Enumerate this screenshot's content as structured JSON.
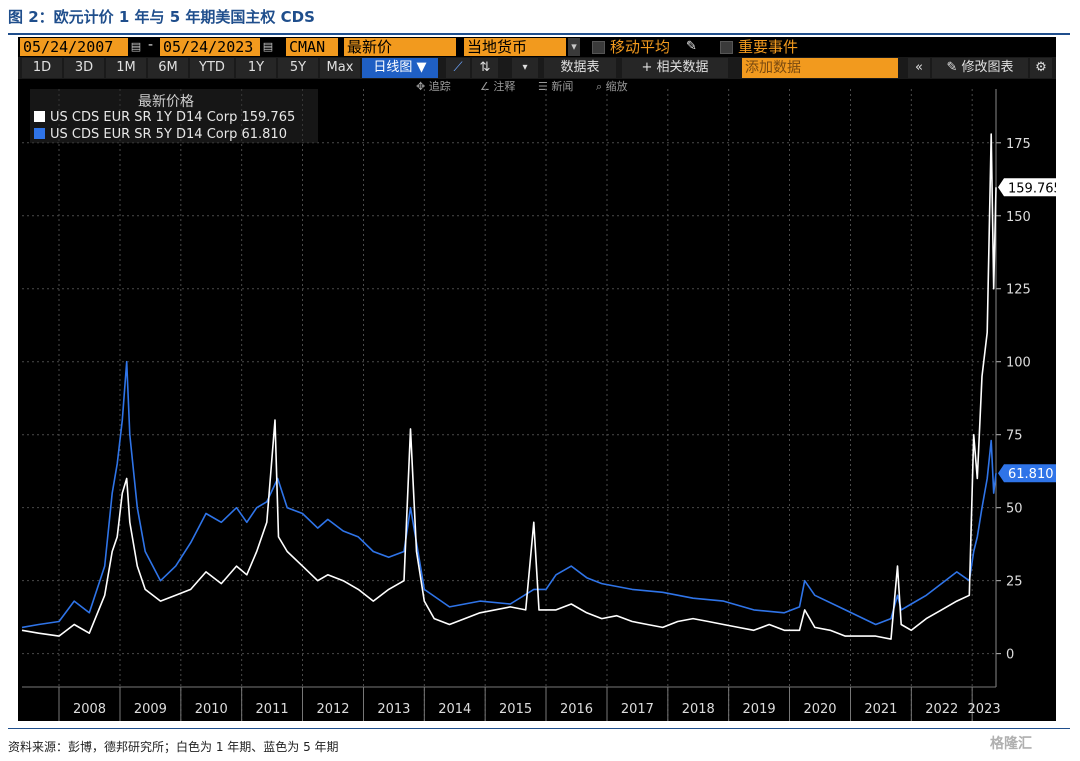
{
  "figure": {
    "title": "图 2：欧元计价 1 年与 5 年期美国主权 CDS",
    "source": "资料来源：彭博，德邦研究所；白色为 1 年期、蓝色为 5 年期",
    "watermark": "格隆汇"
  },
  "toolbar": {
    "start_date": "05/24/2007",
    "end_date": "05/24/2023",
    "dash": "-",
    "calendar_icon": "calendar-icon",
    "mode": "CMAN",
    "field": "最新价",
    "currency": "当地货币",
    "moving_avg_label": "移动平均",
    "events_label": "重要事件",
    "periods": [
      "1D",
      "3D",
      "1M",
      "6M",
      "YTD",
      "1Y",
      "5Y",
      "Max"
    ],
    "chart_type_label": "日线图 ▼",
    "data_table_label": "数据表",
    "related_data_label": "+ 相关数据",
    "add_data_placeholder": "添加数据",
    "edit_chart_label": "修改图表",
    "tools": [
      "追踪",
      "注释",
      "新闻",
      "缩放"
    ]
  },
  "colors": {
    "orange": "#f29a1e",
    "series_1y": "#ffffff",
    "series_5y": "#2f74e8",
    "background": "#000000",
    "title_blue": "#1f4e8c"
  },
  "chart_data": {
    "type": "line",
    "title": "",
    "legend_title": "最新价格",
    "legend_position": "top-left",
    "grid": true,
    "ylim": [
      -8,
      190
    ],
    "yticks": [
      0,
      25,
      50,
      75,
      100,
      125,
      150,
      175
    ],
    "xlim": [
      "2007-05-24",
      "2023-05-24"
    ],
    "xticks": [
      "2008",
      "2009",
      "2010",
      "2011",
      "2012",
      "2013",
      "2014",
      "2015",
      "2016",
      "2017",
      "2018",
      "2019",
      "2020",
      "2021",
      "2022",
      "2023"
    ],
    "series": [
      {
        "name": "US CDS EUR SR 1Y D14 Corp",
        "last": "159.765",
        "color": "#ffffff",
        "points": [
          [
            "2007-05-24",
            8
          ],
          [
            "2007-09-01",
            7
          ],
          [
            "2008-01-01",
            6
          ],
          [
            "2008-04-01",
            10
          ],
          [
            "2008-07-01",
            7
          ],
          [
            "2008-10-01",
            20
          ],
          [
            "2008-11-15",
            35
          ],
          [
            "2008-12-15",
            40
          ],
          [
            "2009-01-15",
            55
          ],
          [
            "2009-02-10",
            60
          ],
          [
            "2009-03-01",
            45
          ],
          [
            "2009-04-15",
            30
          ],
          [
            "2009-06-01",
            22
          ],
          [
            "2009-09-01",
            18
          ],
          [
            "2009-12-01",
            20
          ],
          [
            "2010-03-01",
            22
          ],
          [
            "2010-06-01",
            28
          ],
          [
            "2010-09-01",
            24
          ],
          [
            "2010-12-01",
            30
          ],
          [
            "2011-02-01",
            27
          ],
          [
            "2011-04-01",
            35
          ],
          [
            "2011-06-01",
            45
          ],
          [
            "2011-07-20",
            80
          ],
          [
            "2011-08-10",
            40
          ],
          [
            "2011-10-01",
            35
          ],
          [
            "2012-01-01",
            30
          ],
          [
            "2012-04-01",
            25
          ],
          [
            "2012-06-01",
            27
          ],
          [
            "2012-09-01",
            25
          ],
          [
            "2012-12-01",
            22
          ],
          [
            "2013-03-01",
            18
          ],
          [
            "2013-06-01",
            22
          ],
          [
            "2013-09-01",
            25
          ],
          [
            "2013-10-10",
            77
          ],
          [
            "2013-11-15",
            35
          ],
          [
            "2014-01-01",
            18
          ],
          [
            "2014-03-01",
            12
          ],
          [
            "2014-06-01",
            10
          ],
          [
            "2014-09-01",
            12
          ],
          [
            "2014-12-01",
            14
          ],
          [
            "2015-06-01",
            16
          ],
          [
            "2015-09-01",
            15
          ],
          [
            "2015-10-20",
            45
          ],
          [
            "2015-11-20",
            15
          ],
          [
            "2016-03-01",
            15
          ],
          [
            "2016-06-01",
            17
          ],
          [
            "2016-09-01",
            14
          ],
          [
            "2016-12-01",
            12
          ],
          [
            "2017-03-01",
            13
          ],
          [
            "2017-06-01",
            11
          ],
          [
            "2017-09-01",
            10
          ],
          [
            "2017-12-01",
            9
          ],
          [
            "2018-03-01",
            11
          ],
          [
            "2018-06-01",
            12
          ],
          [
            "2018-09-01",
            11
          ],
          [
            "2018-12-01",
            10
          ],
          [
            "2019-03-01",
            9
          ],
          [
            "2019-06-01",
            8
          ],
          [
            "2019-09-01",
            10
          ],
          [
            "2019-12-01",
            8
          ],
          [
            "2020-03-01",
            8
          ],
          [
            "2020-04-01",
            15
          ],
          [
            "2020-06-01",
            9
          ],
          [
            "2020-09-01",
            8
          ],
          [
            "2020-12-01",
            6
          ],
          [
            "2021-03-01",
            6
          ],
          [
            "2021-06-01",
            6
          ],
          [
            "2021-09-01",
            5
          ],
          [
            "2021-10-10",
            30
          ],
          [
            "2021-11-01",
            10
          ],
          [
            "2022-01-01",
            8
          ],
          [
            "2022-04-01",
            12
          ],
          [
            "2022-07-01",
            15
          ],
          [
            "2022-10-01",
            18
          ],
          [
            "2022-12-15",
            20
          ],
          [
            "2023-01-10",
            75
          ],
          [
            "2023-02-01",
            60
          ],
          [
            "2023-03-01",
            95
          ],
          [
            "2023-04-01",
            110
          ],
          [
            "2023-04-25",
            178
          ],
          [
            "2023-05-10",
            125
          ],
          [
            "2023-05-24",
            159.765
          ]
        ]
      },
      {
        "name": "US CDS EUR SR 5Y D14 Corp",
        "last": "61.810",
        "color": "#2f74e8",
        "points": [
          [
            "2007-05-24",
            9
          ],
          [
            "2007-09-01",
            10
          ],
          [
            "2008-01-01",
            11
          ],
          [
            "2008-04-01",
            18
          ],
          [
            "2008-07-01",
            14
          ],
          [
            "2008-10-01",
            30
          ],
          [
            "2008-11-15",
            55
          ],
          [
            "2008-12-15",
            65
          ],
          [
            "2009-01-15",
            80
          ],
          [
            "2009-02-10",
            100
          ],
          [
            "2009-03-01",
            75
          ],
          [
            "2009-04-15",
            50
          ],
          [
            "2009-06-01",
            35
          ],
          [
            "2009-09-01",
            25
          ],
          [
            "2009-12-01",
            30
          ],
          [
            "2010-03-01",
            38
          ],
          [
            "2010-06-01",
            48
          ],
          [
            "2010-09-01",
            45
          ],
          [
            "2010-12-01",
            50
          ],
          [
            "2011-02-01",
            45
          ],
          [
            "2011-04-01",
            50
          ],
          [
            "2011-06-01",
            52
          ],
          [
            "2011-08-05",
            60
          ],
          [
            "2011-10-01",
            50
          ],
          [
            "2012-01-01",
            48
          ],
          [
            "2012-04-01",
            43
          ],
          [
            "2012-06-01",
            46
          ],
          [
            "2012-09-01",
            42
          ],
          [
            "2012-12-01",
            40
          ],
          [
            "2013-03-01",
            35
          ],
          [
            "2013-06-01",
            33
          ],
          [
            "2013-09-01",
            35
          ],
          [
            "2013-10-10",
            50
          ],
          [
            "2013-11-15",
            38
          ],
          [
            "2014-01-01",
            22
          ],
          [
            "2014-06-01",
            16
          ],
          [
            "2014-12-01",
            18
          ],
          [
            "2015-06-01",
            17
          ],
          [
            "2015-10-20",
            22
          ],
          [
            "2016-01-01",
            22
          ],
          [
            "2016-03-01",
            27
          ],
          [
            "2016-06-01",
            30
          ],
          [
            "2016-09-01",
            26
          ],
          [
            "2016-12-01",
            24
          ],
          [
            "2017-06-01",
            22
          ],
          [
            "2017-12-01",
            21
          ],
          [
            "2018-06-01",
            19
          ],
          [
            "2018-12-01",
            18
          ],
          [
            "2019-06-01",
            15
          ],
          [
            "2019-12-01",
            14
          ],
          [
            "2020-03-01",
            16
          ],
          [
            "2020-04-01",
            25
          ],
          [
            "2020-06-01",
            20
          ],
          [
            "2020-12-01",
            15
          ],
          [
            "2021-06-01",
            10
          ],
          [
            "2021-09-01",
            12
          ],
          [
            "2021-10-10",
            20
          ],
          [
            "2021-11-01",
            15
          ],
          [
            "2022-01-01",
            17
          ],
          [
            "2022-04-01",
            20
          ],
          [
            "2022-07-01",
            24
          ],
          [
            "2022-10-01",
            28
          ],
          [
            "2022-12-15",
            25
          ],
          [
            "2023-01-10",
            35
          ],
          [
            "2023-02-01",
            40
          ],
          [
            "2023-03-01",
            50
          ],
          [
            "2023-04-01",
            60
          ],
          [
            "2023-04-25",
            73
          ],
          [
            "2023-05-10",
            55
          ],
          [
            "2023-05-24",
            61.81
          ]
        ]
      }
    ]
  }
}
